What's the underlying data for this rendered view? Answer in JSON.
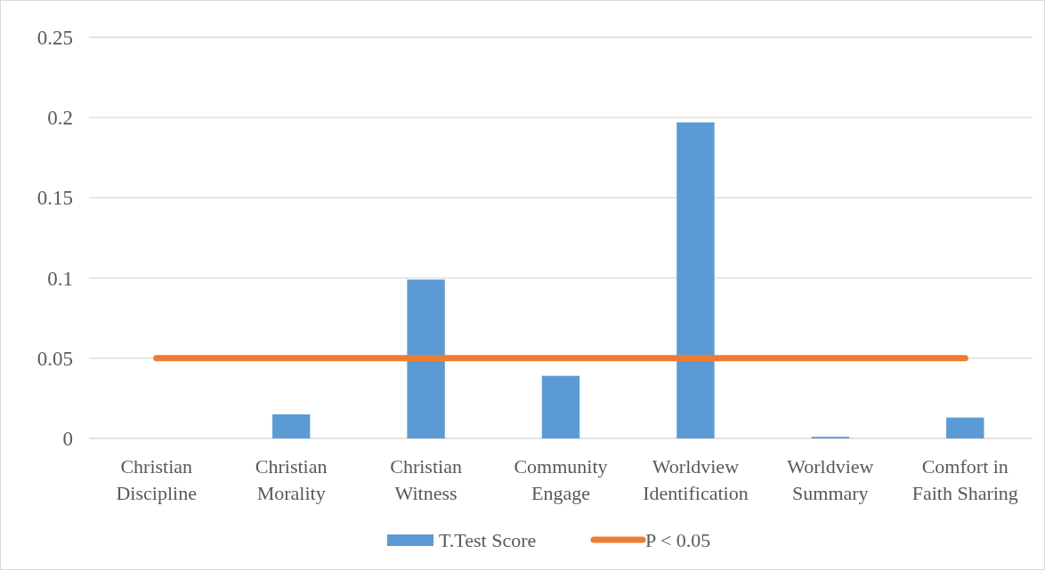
{
  "chart_data": {
    "type": "bar",
    "categories": [
      "Christian Discipline",
      "Christian Morality",
      "Christian Witness",
      "Community Engage",
      "Worldview Identification",
      "Worldview Summary",
      "Comfort in Faith Sharing"
    ],
    "series": [
      {
        "name": "T.Test Score",
        "color": "#5b9bd5",
        "values": [
          0,
          0.015,
          0.099,
          0.039,
          0.197,
          0.001,
          0.013
        ]
      },
      {
        "name": "P < 0.05",
        "type": "line",
        "color": "#ed7d31",
        "values": [
          0.05,
          0.05,
          0.05,
          0.05,
          0.05,
          0.05,
          0.05
        ]
      }
    ],
    "ylim": [
      0,
      0.25
    ],
    "yticks": [
      0,
      0.05,
      0.1,
      0.15,
      0.2,
      0.25
    ],
    "grid": "y",
    "legend": "bottom"
  }
}
